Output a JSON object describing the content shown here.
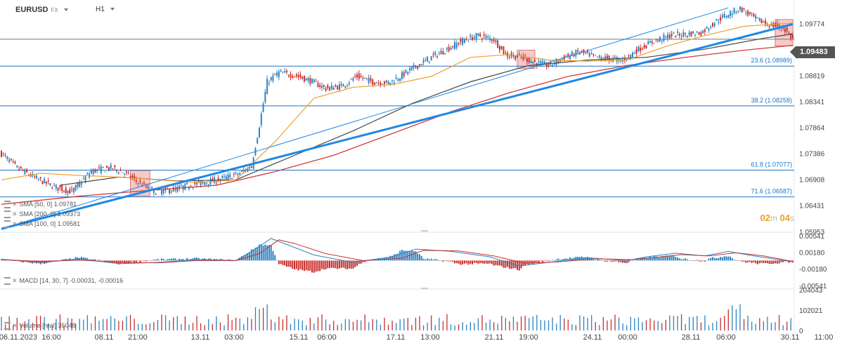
{
  "header": {
    "symbol": "EURUSD",
    "market": "FX",
    "timeframe": "H1"
  },
  "last_price": "1.09483",
  "timer": {
    "min": "02",
    "min_unit": "m",
    "sec": "04",
    "sec_unit": "s"
  },
  "legend": {
    "sma50": "SMA [50, 0] 1.09781",
    "sma200": "SMA [200, 0] 1.09373",
    "sma100": "SMA [100, 0] 1.09581",
    "macd": "MACD [14, 30, 7] -0.00031, -0.00016",
    "volume": "Volume [real] 35048"
  },
  "colors": {
    "up": "#2a83c4",
    "down": "#c8302c",
    "trend": "#1e88e5",
    "sma50": "#f0a030",
    "sma100": "#444444",
    "sma200": "#d23a3a",
    "fib": "#1b73c8",
    "shade": "#f4b6b6"
  },
  "chart_data": {
    "type": "candlestick",
    "symbol": "EURUSD",
    "timeframe": "H1",
    "price_axis": {
      "ticks": [
        "1.09774",
        "1.09296",
        "1.08819",
        "1.08341",
        "1.07864",
        "1.07386",
        "1.06908",
        "1.06431",
        "1.05953"
      ],
      "range": [
        1.0595,
        1.101
      ]
    },
    "date_axis": [
      "06.11.2023",
      "16:00",
      "08.11",
      "21:00",
      "13.11",
      "03:00",
      "15.11",
      "06:00",
      "17.11",
      "13:00",
      "21.11",
      "19:00",
      "24.11",
      "00:00",
      "28.11",
      "06:00",
      "30.11",
      "11:00"
    ],
    "fib_levels": [
      {
        "label": "23.6 (1.08989)",
        "value": 1.08989
      },
      {
        "label": "38.2 (1.08258)",
        "value": 1.08258
      },
      {
        "label": "61.8 (1.07077)",
        "value": 1.07077
      },
      {
        "label": "71.6 (1.06587)",
        "value": 1.06587
      }
    ],
    "hline_current": 1.09483,
    "price_path": [
      [
        0,
        1.0738
      ],
      [
        8,
        1.0712
      ],
      [
        18,
        1.0692
      ],
      [
        28,
        1.0676
      ],
      [
        36,
        1.0668
      ],
      [
        46,
        1.0706
      ],
      [
        56,
        1.0712
      ],
      [
        62,
        1.0705
      ],
      [
        68,
        1.069
      ],
      [
        78,
        1.0668
      ],
      [
        88,
        1.0672
      ],
      [
        98,
        1.0682
      ],
      [
        108,
        1.0688
      ],
      [
        116,
        1.0695
      ],
      [
        122,
        1.0702
      ],
      [
        128,
        1.0716
      ],
      [
        132,
        1.079
      ],
      [
        136,
        1.087
      ],
      [
        142,
        1.0887
      ],
      [
        150,
        1.0882
      ],
      [
        158,
        1.0872
      ],
      [
        166,
        1.0858
      ],
      [
        174,
        1.0862
      ],
      [
        182,
        1.088
      ],
      [
        190,
        1.087
      ],
      [
        198,
        1.0868
      ],
      [
        204,
        1.088
      ],
      [
        212,
        1.0898
      ],
      [
        220,
        1.0915
      ],
      [
        228,
        1.093
      ],
      [
        236,
        1.0946
      ],
      [
        244,
        1.0955
      ],
      [
        252,
        1.0948
      ],
      [
        258,
        1.092
      ],
      [
        266,
        1.0915
      ],
      [
        274,
        1.0905
      ],
      [
        280,
        1.09
      ],
      [
        288,
        1.0915
      ],
      [
        296,
        1.0925
      ],
      [
        304,
        1.0915
      ],
      [
        312,
        1.0912
      ],
      [
        318,
        1.091
      ],
      [
        326,
        1.093
      ],
      [
        334,
        1.0945
      ],
      [
        342,
        1.0955
      ],
      [
        350,
        1.0958
      ],
      [
        358,
        1.096
      ],
      [
        366,
        1.0982
      ],
      [
        372,
        1.0995
      ],
      [
        378,
        1.1005
      ],
      [
        384,
        1.099
      ],
      [
        392,
        1.0975
      ],
      [
        400,
        1.097
      ],
      [
        405,
        1.0948
      ]
    ],
    "sma50_path": [
      [
        0,
        1.069
      ],
      [
        20,
        1.0702
      ],
      [
        40,
        1.0698
      ],
      [
        60,
        1.0695
      ],
      [
        80,
        1.069
      ],
      [
        100,
        1.0685
      ],
      [
        120,
        1.069
      ],
      [
        140,
        1.076
      ],
      [
        160,
        1.084
      ],
      [
        180,
        1.086
      ],
      [
        200,
        1.0865
      ],
      [
        220,
        1.088
      ],
      [
        240,
        1.0915
      ],
      [
        260,
        1.092
      ],
      [
        280,
        1.091
      ],
      [
        300,
        1.0908
      ],
      [
        320,
        1.091
      ],
      [
        340,
        1.0935
      ],
      [
        360,
        1.0955
      ],
      [
        380,
        1.0972
      ],
      [
        405,
        1.0978
      ]
    ],
    "sma100_path": [
      [
        30,
        1.068
      ],
      [
        60,
        1.0695
      ],
      [
        90,
        1.0688
      ],
      [
        120,
        1.069
      ],
      [
        150,
        1.0735
      ],
      [
        180,
        1.078
      ],
      [
        210,
        1.083
      ],
      [
        240,
        1.087
      ],
      [
        270,
        1.09
      ],
      [
        300,
        1.091
      ],
      [
        330,
        1.0915
      ],
      [
        360,
        1.093
      ],
      [
        390,
        1.095
      ],
      [
        405,
        1.0958
      ]
    ],
    "sma200_path": [
      [
        0,
        1.0645
      ],
      [
        40,
        1.066
      ],
      [
        80,
        1.0672
      ],
      [
        110,
        1.068
      ],
      [
        140,
        1.0705
      ],
      [
        170,
        1.0735
      ],
      [
        200,
        1.0775
      ],
      [
        230,
        1.0815
      ],
      [
        260,
        1.085
      ],
      [
        290,
        1.088
      ],
      [
        320,
        1.09
      ],
      [
        350,
        1.0915
      ],
      [
        380,
        1.0928
      ],
      [
        405,
        1.0937
      ]
    ],
    "trendline_main": [
      [
        0,
        1.06
      ],
      [
        405,
        1.0976
      ]
    ],
    "channel_upper": [
      [
        0,
        1.06
      ],
      [
        372,
        1.1006
      ]
    ],
    "shaded_zones": [
      [
        66,
        76
      ],
      [
        264,
        273
      ],
      [
        396,
        405
      ]
    ],
    "macd_axis": {
      "ticks": [
        "0.00541",
        "0.00180",
        "-0.00180",
        "-0.00541"
      ],
      "range": [
        -0.0062,
        0.006
      ]
    },
    "macd_path": [
      [
        0,
        0.0003
      ],
      [
        20,
        -0.0005
      ],
      [
        40,
        0.0004
      ],
      [
        60,
        -0.0007
      ],
      [
        80,
        -0.0004
      ],
      [
        100,
        0.0002
      ],
      [
        120,
        0.0
      ],
      [
        130,
        0.0025
      ],
      [
        138,
        0.0048
      ],
      [
        146,
        0.0035
      ],
      [
        160,
        0.0012
      ],
      [
        180,
        -0.0004
      ],
      [
        200,
        0.0008
      ],
      [
        212,
        0.0025
      ],
      [
        230,
        0.002
      ],
      [
        250,
        0.0008
      ],
      [
        265,
        -0.0012
      ],
      [
        280,
        -0.0004
      ],
      [
        300,
        0.0006
      ],
      [
        320,
        0.0
      ],
      [
        330,
        0.0008
      ],
      [
        345,
        0.0016
      ],
      [
        360,
        0.001
      ],
      [
        372,
        0.002
      ],
      [
        385,
        0.001
      ],
      [
        405,
        -0.0003
      ]
    ],
    "signal_path": [
      [
        0,
        0.0002
      ],
      [
        20,
        -0.0002
      ],
      [
        40,
        0.0001
      ],
      [
        60,
        -0.0004
      ],
      [
        80,
        -0.0005
      ],
      [
        100,
        0.0
      ],
      [
        120,
        0.0
      ],
      [
        132,
        0.0015
      ],
      [
        142,
        0.0045
      ],
      [
        150,
        0.0037
      ],
      [
        166,
        0.0015
      ],
      [
        185,
        0.0
      ],
      [
        205,
        0.0005
      ],
      [
        216,
        0.0022
      ],
      [
        234,
        0.0021
      ],
      [
        252,
        0.001
      ],
      [
        268,
        -0.0006
      ],
      [
        285,
        -0.0003
      ],
      [
        305,
        0.0004
      ],
      [
        322,
        0.0002
      ],
      [
        335,
        0.0007
      ],
      [
        348,
        0.0013
      ],
      [
        362,
        0.001
      ],
      [
        376,
        0.0017
      ],
      [
        390,
        0.001
      ],
      [
        405,
        -0.0002
      ]
    ],
    "volume_axis": {
      "ticks": [
        "204043",
        "102021",
        "0"
      ],
      "max": 204043
    }
  }
}
